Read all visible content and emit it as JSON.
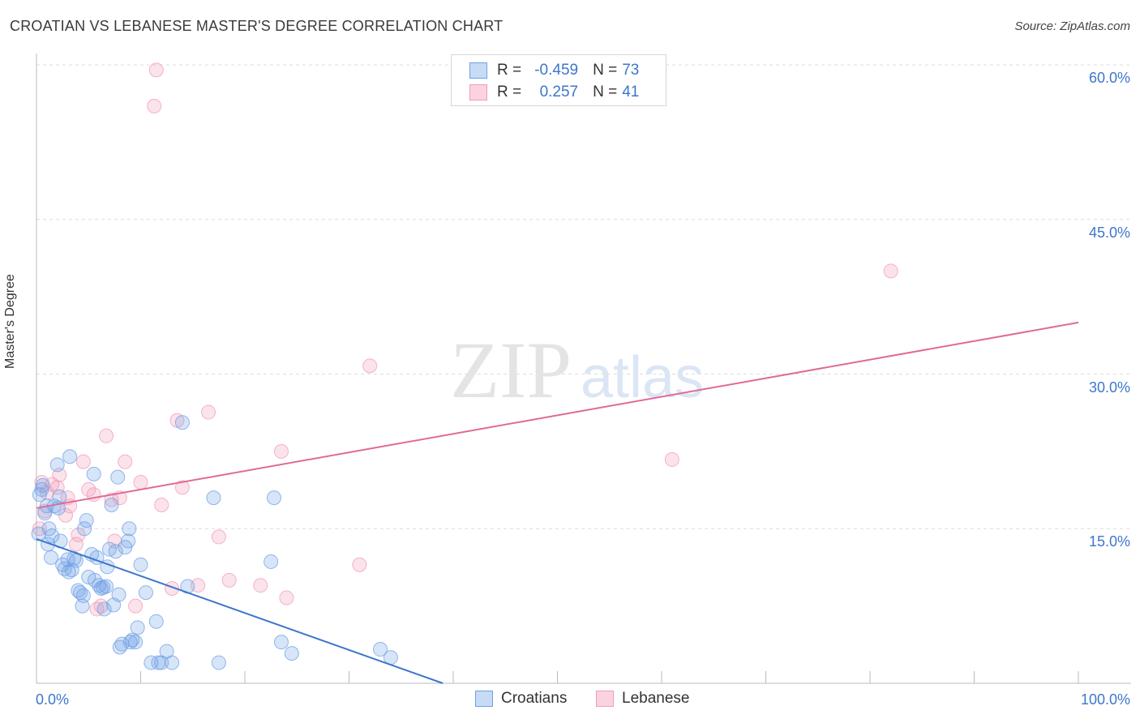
{
  "title": "CROATIAN VS LEBANESE MASTER'S DEGREE CORRELATION CHART",
  "source": "Source: ZipAtlas.com",
  "watermark": {
    "zip": "ZIP",
    "atlas": "atlas"
  },
  "legend": {
    "rows": [
      {
        "r_label": "R =",
        "r_value": "-0.459",
        "n_label": "N =",
        "n_value": "73"
      },
      {
        "r_label": "R =",
        "r_value": "0.257",
        "n_label": "N =",
        "n_value": "41"
      }
    ]
  },
  "colors": {
    "croatians": "#6fa0e6",
    "lebanese": "#f29bb7",
    "croatians_line": "#3d76cc",
    "lebanese_line": "#e06a96",
    "tick_text": "#3d76cc"
  },
  "chart_data": {
    "type": "scatter",
    "title": "CROATIAN VS LEBANESE MASTER'S DEGREE CORRELATION CHART",
    "xlabel": "",
    "ylabel": "Master's Degree",
    "xlim": [
      0,
      100
    ],
    "ylim": [
      0,
      60
    ],
    "x_tick_labels": [
      "0.0%",
      "100.0%"
    ],
    "y_ticks": [
      15,
      30,
      45,
      60
    ],
    "y_tick_labels": [
      "15.0%",
      "30.0%",
      "45.0%",
      "60.0%"
    ],
    "grid": true,
    "legend_position": "top-center",
    "series": [
      {
        "name": "Croatians",
        "r": -0.459,
        "n": 73,
        "trend": {
          "x0": 0,
          "y0": 14.0,
          "x1": 39,
          "y1": 0
        },
        "points": [
          [
            0.3,
            18.3
          ],
          [
            0.5,
            18.8
          ],
          [
            0.8,
            16.5
          ],
          [
            1.0,
            17.2
          ],
          [
            1.2,
            15.0
          ],
          [
            1.4,
            12.2
          ],
          [
            1.5,
            14.3
          ],
          [
            1.7,
            17.2
          ],
          [
            2.0,
            21.2
          ],
          [
            2.2,
            18.1
          ],
          [
            2.3,
            13.8
          ],
          [
            2.5,
            11.5
          ],
          [
            2.7,
            11.1
          ],
          [
            3.0,
            12.0
          ],
          [
            3.2,
            22.0
          ],
          [
            3.4,
            11.0
          ],
          [
            3.6,
            12.1
          ],
          [
            3.8,
            11.9
          ],
          [
            4.0,
            9.0
          ],
          [
            4.2,
            8.8
          ],
          [
            4.4,
            7.5
          ],
          [
            4.6,
            15.0
          ],
          [
            4.8,
            15.8
          ],
          [
            5.0,
            10.3
          ],
          [
            5.3,
            12.5
          ],
          [
            5.5,
            20.3
          ],
          [
            5.6,
            10.0
          ],
          [
            5.8,
            12.2
          ],
          [
            6.0,
            9.5
          ],
          [
            6.2,
            9.2
          ],
          [
            6.4,
            9.3
          ],
          [
            6.5,
            7.2
          ],
          [
            6.8,
            11.3
          ],
          [
            7.0,
            13.0
          ],
          [
            7.2,
            17.3
          ],
          [
            7.4,
            7.6
          ],
          [
            7.6,
            12.8
          ],
          [
            7.8,
            20.0
          ],
          [
            8.0,
            3.5
          ],
          [
            8.2,
            3.8
          ],
          [
            8.5,
            13.2
          ],
          [
            8.8,
            13.8
          ],
          [
            8.9,
            15.0
          ],
          [
            9.0,
            4.0
          ],
          [
            9.5,
            4.0
          ],
          [
            9.7,
            5.4
          ],
          [
            10.0,
            11.5
          ],
          [
            10.5,
            8.8
          ],
          [
            11.0,
            2.0
          ],
          [
            11.5,
            6.0
          ],
          [
            11.7,
            2.0
          ],
          [
            12.0,
            2.0
          ],
          [
            12.5,
            3.1
          ],
          [
            13.0,
            2.0
          ],
          [
            14.0,
            25.3
          ],
          [
            14.5,
            9.4
          ],
          [
            17.0,
            18.0
          ],
          [
            17.5,
            2.0
          ],
          [
            22.5,
            11.8
          ],
          [
            22.8,
            18.0
          ],
          [
            23.5,
            4.0
          ],
          [
            24.5,
            2.9
          ],
          [
            33.0,
            3.3
          ],
          [
            34.0,
            2.5
          ],
          [
            0.2,
            14.5
          ],
          [
            0.6,
            19.2
          ],
          [
            1.1,
            13.5
          ],
          [
            2.1,
            17.0
          ],
          [
            3.1,
            10.8
          ],
          [
            4.5,
            8.5
          ],
          [
            6.7,
            9.4
          ],
          [
            9.2,
            4.2
          ],
          [
            7.9,
            8.6
          ]
        ]
      },
      {
        "name": "Lebanese",
        "r": 0.257,
        "n": 41,
        "trend": {
          "x0": 0,
          "y0": 17.0,
          "x1": 100,
          "y1": 35.0
        },
        "points": [
          [
            0.5,
            19.5
          ],
          [
            0.8,
            16.7
          ],
          [
            1.0,
            18.5
          ],
          [
            1.5,
            19.3
          ],
          [
            2.0,
            19.0
          ],
          [
            2.2,
            20.2
          ],
          [
            2.8,
            16.3
          ],
          [
            3.0,
            18.0
          ],
          [
            3.2,
            17.2
          ],
          [
            3.8,
            13.5
          ],
          [
            4.0,
            14.4
          ],
          [
            4.5,
            21.5
          ],
          [
            5.0,
            18.8
          ],
          [
            5.5,
            18.3
          ],
          [
            5.8,
            7.2
          ],
          [
            6.2,
            7.5
          ],
          [
            6.7,
            24.0
          ],
          [
            7.2,
            17.8
          ],
          [
            7.5,
            13.8
          ],
          [
            8.0,
            18.0
          ],
          [
            8.5,
            21.5
          ],
          [
            9.5,
            7.5
          ],
          [
            10.0,
            19.5
          ],
          [
            11.5,
            59.5
          ],
          [
            12.0,
            17.3
          ],
          [
            13.0,
            9.2
          ],
          [
            13.5,
            25.5
          ],
          [
            14.0,
            19.0
          ],
          [
            15.5,
            9.5
          ],
          [
            16.5,
            26.3
          ],
          [
            17.5,
            14.2
          ],
          [
            18.5,
            10.0
          ],
          [
            21.5,
            9.5
          ],
          [
            23.5,
            22.5
          ],
          [
            24.0,
            8.3
          ],
          [
            31.0,
            11.5
          ],
          [
            32.0,
            30.8
          ],
          [
            61.0,
            21.7
          ],
          [
            82.0,
            40.0
          ],
          [
            11.3,
            56.0
          ],
          [
            0.3,
            15.0
          ]
        ]
      }
    ]
  }
}
